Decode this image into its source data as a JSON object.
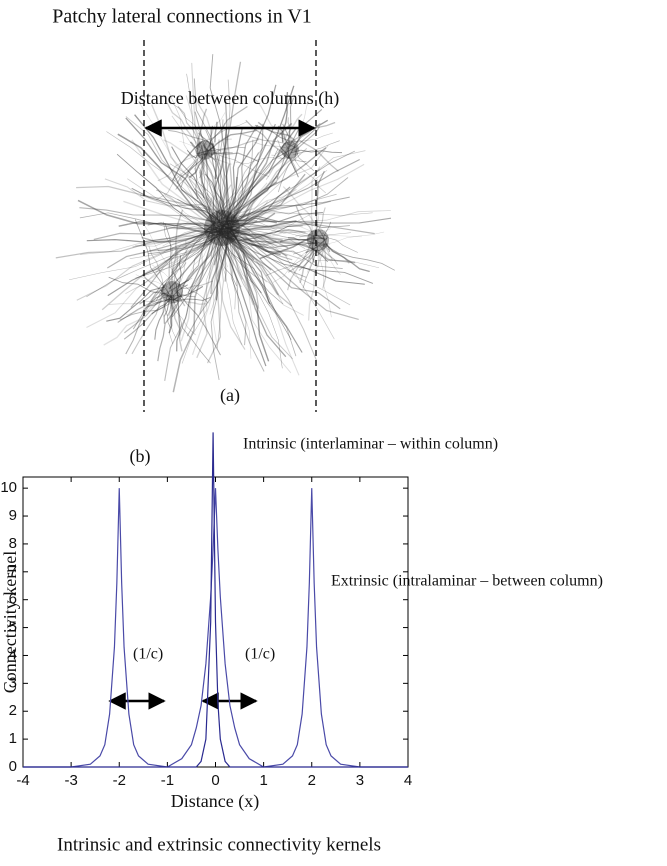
{
  "figure": {
    "panel_a": {
      "title": "Patchy lateral connections in V1",
      "distance_label": "Distance between columns (h)",
      "label": "(a)"
    },
    "caption": "Intrinsic and extrinsic connectivity kernels"
  },
  "chart_data": {
    "type": "line",
    "panel_label": "(b)",
    "x_label": "Distance (x)",
    "y_label": "Connectivity kernel",
    "annotations": [
      "Intrinsic (interlaminar – within column)",
      "Extrinsic (intralaminar – between column)",
      "(1/c)",
      "(1/c)"
    ],
    "x": [
      -4,
      -3,
      -2.6,
      -2.4,
      -2.3,
      -2.2,
      -2.1,
      -2.05,
      -2,
      -1.95,
      -1.9,
      -1.8,
      -1.7,
      -1.6,
      -1.4,
      -1,
      -0.7,
      -0.5,
      -0.4,
      -0.3,
      -0.2,
      -0.1,
      -0.05,
      0,
      0.05,
      0.1,
      0.2,
      0.3,
      0.4,
      0.5,
      0.7,
      1,
      1.4,
      1.6,
      1.7,
      1.8,
      1.9,
      1.95,
      2,
      2.05,
      2.1,
      2.2,
      2.3,
      2.4,
      2.6,
      3,
      4
    ],
    "series": [
      {
        "color": "#4a4aa8",
        "values": [
          0,
          0,
          0.1,
          0.4,
          0.8,
          1.9,
          4.3,
          6.6,
          10,
          6.6,
          4.3,
          1.9,
          0.8,
          0.4,
          0.1,
          0,
          0.3,
          0.8,
          1.4,
          2.2,
          3.7,
          6.1,
          7.8,
          10,
          7.8,
          6.1,
          3.7,
          2.2,
          1.4,
          0.8,
          0.3,
          0,
          0.1,
          0.4,
          0.8,
          1.9,
          4.3,
          6.6,
          10,
          6.6,
          4.3,
          1.9,
          0.8,
          0.4,
          0.1,
          0,
          0
        ]
      },
      {
        "color": "#2a2a90",
        "values": [
          0,
          0,
          0,
          0,
          0,
          0,
          0,
          0,
          0,
          0,
          0,
          0,
          0,
          0,
          0,
          0,
          0,
          0,
          0,
          0.2,
          1,
          5.2,
          12,
          5.2,
          2.3,
          1,
          0.2,
          0,
          0,
          0,
          0,
          0,
          0,
          0,
          0,
          0,
          0,
          0,
          0,
          0,
          0,
          0,
          0,
          0,
          0,
          0,
          0
        ]
      }
    ],
    "xlim": [
      -4,
      4
    ],
    "xticks": [
      -4,
      -3,
      -2,
      -1,
      0,
      1,
      2,
      3,
      4
    ],
    "ylim": [
      0,
      10.4
    ],
    "yticks": [
      0,
      1,
      2,
      3,
      4,
      5,
      6,
      7,
      8,
      9,
      10
    ]
  }
}
